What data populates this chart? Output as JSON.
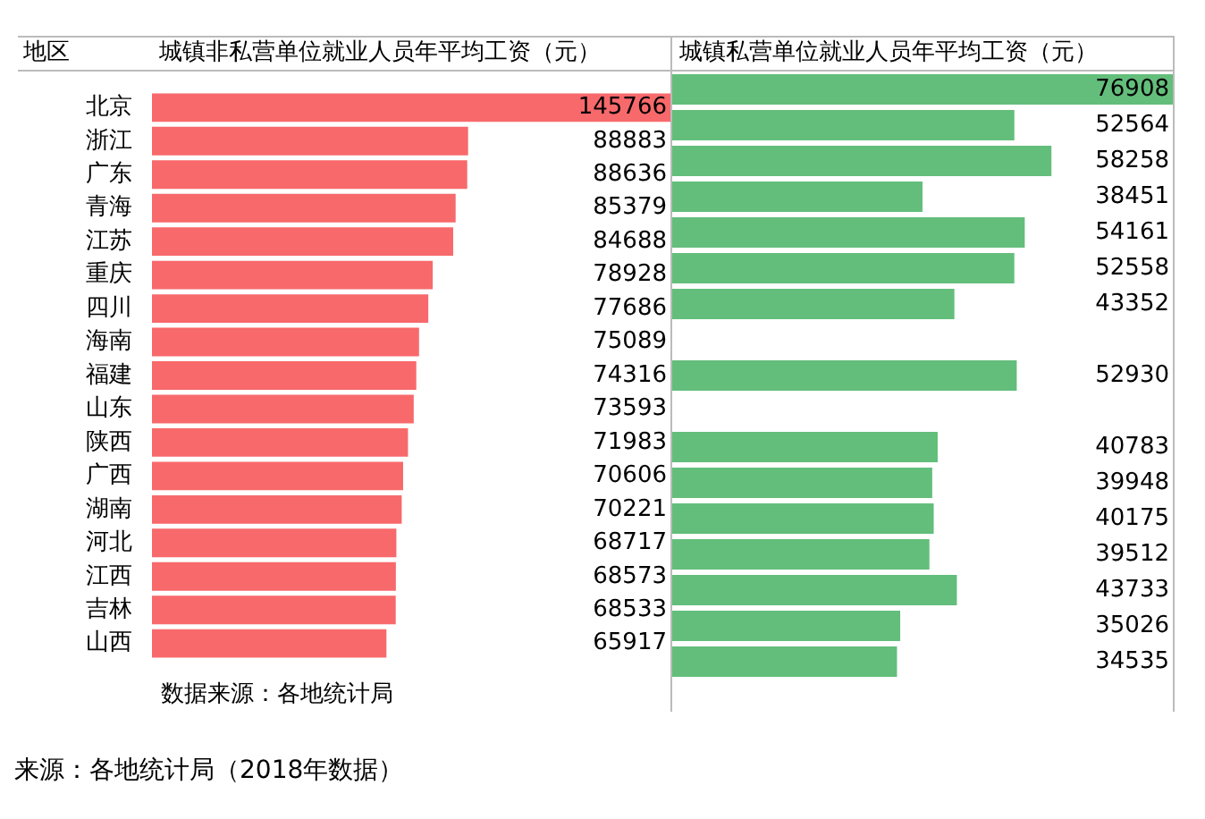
{
  "chart_data": [
    {
      "type": "bar",
      "orientation": "horizontal",
      "title": "城镇非私营单位就业人员年平均工资（元）",
      "ylabel": "地区",
      "categories": [
        "北京",
        "浙江",
        "广东",
        "青海",
        "江苏",
        "重庆",
        "四川",
        "海南",
        "福建",
        "山东",
        "陕西",
        "广西",
        "湖南",
        "河北",
        "江西",
        "吉林",
        "山西"
      ],
      "values": [
        145766,
        88883,
        88636,
        85379,
        84688,
        78928,
        77686,
        75089,
        74316,
        73593,
        71983,
        70606,
        70221,
        68717,
        68573,
        68533,
        65917
      ],
      "color": "#f8696b",
      "data_labels": true,
      "tick_labels": "y",
      "annotations": [
        "数据来源：各地统计局",
        "来源：各地统计局（2018年数据）"
      ]
    },
    {
      "type": "bar",
      "orientation": "horizontal",
      "title": "城镇私营单位就业人员年平均工资（元）",
      "categories": [
        null,
        null,
        null,
        null,
        null,
        null,
        null,
        null,
        null,
        null,
        null,
        null,
        null,
        null,
        null,
        null,
        null
      ],
      "values": [
        76908,
        52564,
        58258,
        38451,
        54161,
        52558,
        43352,
        null,
        52930,
        null,
        40783,
        39948,
        40175,
        39512,
        43733,
        35026,
        34535
      ],
      "color": "#63be7b",
      "data_labels": true,
      "tick_labels": false
    }
  ]
}
